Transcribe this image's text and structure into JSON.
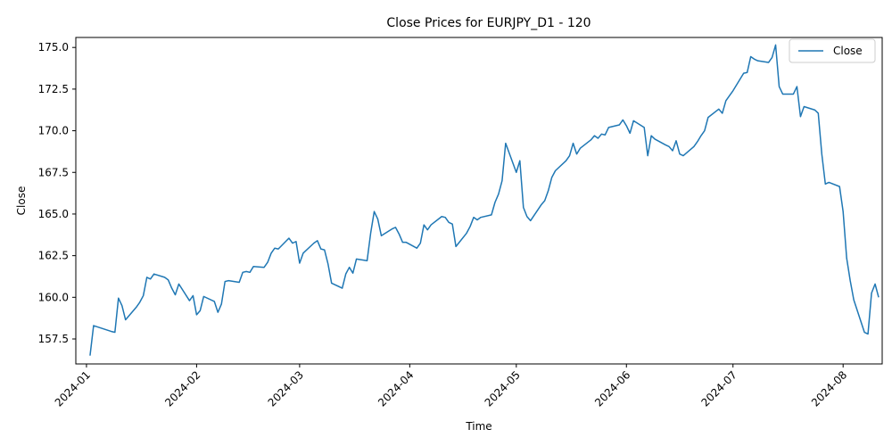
{
  "chart_data": {
    "type": "line",
    "title": "Close Prices for EURJPY_D1 - 120",
    "xlabel": "Time",
    "ylabel": "Close",
    "xlim": [
      "2023-12-29",
      "2024-08-12"
    ],
    "ylim": [
      156.0,
      175.6
    ],
    "x_ticks": [
      "2024-01",
      "2024-02",
      "2024-03",
      "2024-04",
      "2024-05",
      "2024-06",
      "2024-07",
      "2024-08"
    ],
    "y_ticks": [
      "157.5",
      "160.0",
      "162.5",
      "165.0",
      "167.5",
      "170.0",
      "172.5",
      "175.0"
    ],
    "grid": false,
    "legend": {
      "position": "top-right",
      "entries": [
        "Close"
      ]
    },
    "series": [
      {
        "name": "Close",
        "color": "#1f77b4",
        "points": [
          [
            "2024-01-02",
            156.5
          ],
          [
            "2024-01-03",
            158.3
          ],
          [
            "2024-01-08",
            157.95
          ],
          [
            "2024-01-09",
            157.9
          ],
          [
            "2024-01-10",
            159.95
          ],
          [
            "2024-01-11",
            159.5
          ],
          [
            "2024-01-12",
            158.65
          ],
          [
            "2024-01-15",
            159.4
          ],
          [
            "2024-01-16",
            159.7
          ],
          [
            "2024-01-17",
            160.1
          ],
          [
            "2024-01-18",
            161.2
          ],
          [
            "2024-01-19",
            161.1
          ],
          [
            "2024-01-20",
            161.4
          ],
          [
            "2024-01-23",
            161.2
          ],
          [
            "2024-01-24",
            161.05
          ],
          [
            "2024-01-25",
            160.55
          ],
          [
            "2024-01-26",
            160.15
          ],
          [
            "2024-01-27",
            160.8
          ],
          [
            "2024-01-30",
            159.8
          ],
          [
            "2024-01-31",
            160.1
          ],
          [
            "2024-02-01",
            158.95
          ],
          [
            "2024-02-02",
            159.2
          ],
          [
            "2024-02-03",
            160.05
          ],
          [
            "2024-02-06",
            159.75
          ],
          [
            "2024-02-07",
            159.1
          ],
          [
            "2024-02-08",
            159.6
          ],
          [
            "2024-02-09",
            160.95
          ],
          [
            "2024-02-10",
            161.0
          ],
          [
            "2024-02-13",
            160.9
          ],
          [
            "2024-02-14",
            161.5
          ],
          [
            "2024-02-15",
            161.55
          ],
          [
            "2024-02-16",
            161.5
          ],
          [
            "2024-02-17",
            161.85
          ],
          [
            "2024-02-20",
            161.8
          ],
          [
            "2024-02-21",
            162.1
          ],
          [
            "2024-02-22",
            162.65
          ],
          [
            "2024-02-23",
            162.95
          ],
          [
            "2024-02-24",
            162.9
          ],
          [
            "2024-02-27",
            163.55
          ],
          [
            "2024-02-28",
            163.25
          ],
          [
            "2024-02-29",
            163.35
          ],
          [
            "2024-03-01",
            162.05
          ],
          [
            "2024-03-02",
            162.65
          ],
          [
            "2024-03-05",
            163.25
          ],
          [
            "2024-03-06",
            163.4
          ],
          [
            "2024-03-07",
            162.9
          ],
          [
            "2024-03-08",
            162.85
          ],
          [
            "2024-03-09",
            162.0
          ],
          [
            "2024-03-10",
            160.85
          ],
          [
            "2024-03-13",
            160.55
          ],
          [
            "2024-03-14",
            161.4
          ],
          [
            "2024-03-15",
            161.8
          ],
          [
            "2024-03-16",
            161.45
          ],
          [
            "2024-03-17",
            162.3
          ],
          [
            "2024-03-20",
            162.2
          ],
          [
            "2024-03-21",
            163.85
          ],
          [
            "2024-03-22",
            165.15
          ],
          [
            "2024-03-23",
            164.7
          ],
          [
            "2024-03-24",
            163.7
          ],
          [
            "2024-03-27",
            164.1
          ],
          [
            "2024-03-28",
            164.2
          ],
          [
            "2024-03-29",
            163.8
          ],
          [
            "2024-03-30",
            163.3
          ],
          [
            "2024-03-31",
            163.3
          ],
          [
            "2024-04-03",
            162.95
          ],
          [
            "2024-04-04",
            163.25
          ],
          [
            "2024-04-05",
            164.35
          ],
          [
            "2024-04-06",
            164.05
          ],
          [
            "2024-04-07",
            164.35
          ],
          [
            "2024-04-10",
            164.85
          ],
          [
            "2024-04-11",
            164.8
          ],
          [
            "2024-04-12",
            164.5
          ],
          [
            "2024-04-13",
            164.4
          ],
          [
            "2024-04-14",
            163.05
          ],
          [
            "2024-04-17",
            163.85
          ],
          [
            "2024-04-18",
            164.25
          ],
          [
            "2024-04-19",
            164.8
          ],
          [
            "2024-04-20",
            164.65
          ],
          [
            "2024-04-21",
            164.8
          ],
          [
            "2024-04-24",
            164.95
          ],
          [
            "2024-04-25",
            165.7
          ],
          [
            "2024-04-26",
            166.2
          ],
          [
            "2024-04-27",
            167.0
          ],
          [
            "2024-04-28",
            169.25
          ],
          [
            "2024-05-01",
            167.5
          ],
          [
            "2024-05-02",
            168.2
          ],
          [
            "2024-05-03",
            165.4
          ],
          [
            "2024-05-04",
            164.85
          ],
          [
            "2024-05-05",
            164.6
          ],
          [
            "2024-05-08",
            165.55
          ],
          [
            "2024-05-09",
            165.8
          ],
          [
            "2024-05-10",
            166.4
          ],
          [
            "2024-05-11",
            167.2
          ],
          [
            "2024-05-12",
            167.6
          ],
          [
            "2024-05-15",
            168.2
          ],
          [
            "2024-05-16",
            168.5
          ],
          [
            "2024-05-17",
            169.25
          ],
          [
            "2024-05-18",
            168.6
          ],
          [
            "2024-05-19",
            168.95
          ],
          [
            "2024-05-22",
            169.45
          ],
          [
            "2024-05-23",
            169.7
          ],
          [
            "2024-05-24",
            169.55
          ],
          [
            "2024-05-25",
            169.8
          ],
          [
            "2024-05-26",
            169.75
          ],
          [
            "2024-05-27",
            170.2
          ],
          [
            "2024-05-30",
            170.35
          ],
          [
            "2024-05-31",
            170.65
          ],
          [
            "2024-06-01",
            170.3
          ],
          [
            "2024-06-02",
            169.85
          ],
          [
            "2024-06-03",
            170.6
          ],
          [
            "2024-06-06",
            170.2
          ],
          [
            "2024-06-07",
            168.5
          ],
          [
            "2024-06-08",
            169.7
          ],
          [
            "2024-06-09",
            169.5
          ],
          [
            "2024-06-12",
            169.15
          ],
          [
            "2024-06-13",
            169.05
          ],
          [
            "2024-06-14",
            168.8
          ],
          [
            "2024-06-15",
            169.4
          ],
          [
            "2024-06-16",
            168.6
          ],
          [
            "2024-06-17",
            168.5
          ],
          [
            "2024-06-20",
            169.05
          ],
          [
            "2024-06-21",
            169.35
          ],
          [
            "2024-06-22",
            169.7
          ],
          [
            "2024-06-23",
            170.0
          ],
          [
            "2024-06-24",
            170.8
          ],
          [
            "2024-06-27",
            171.3
          ],
          [
            "2024-06-28",
            171.05
          ],
          [
            "2024-06-29",
            171.8
          ],
          [
            "2024-06-30",
            172.1
          ],
          [
            "2024-07-01",
            172.4
          ],
          [
            "2024-07-04",
            173.45
          ],
          [
            "2024-07-05",
            173.5
          ],
          [
            "2024-07-06",
            174.45
          ],
          [
            "2024-07-07",
            174.3
          ],
          [
            "2024-07-08",
            174.2
          ],
          [
            "2024-07-11",
            174.1
          ],
          [
            "2024-07-12",
            174.4
          ],
          [
            "2024-07-13",
            175.15
          ],
          [
            "2024-07-14",
            172.65
          ],
          [
            "2024-07-15",
            172.2
          ],
          [
            "2024-07-18",
            172.2
          ],
          [
            "2024-07-19",
            172.65
          ],
          [
            "2024-07-20",
            170.85
          ],
          [
            "2024-07-21",
            171.45
          ],
          [
            "2024-07-24",
            171.25
          ],
          [
            "2024-07-25",
            171.05
          ],
          [
            "2024-07-26",
            168.6
          ],
          [
            "2024-07-27",
            166.8
          ],
          [
            "2024-07-28",
            166.9
          ],
          [
            "2024-07-31",
            166.65
          ],
          [
            "2024-08-01",
            165.15
          ],
          [
            "2024-08-02",
            162.35
          ],
          [
            "2024-08-03",
            161.0
          ],
          [
            "2024-08-04",
            159.85
          ],
          [
            "2024-08-07",
            157.9
          ],
          [
            "2024-08-08",
            157.8
          ],
          [
            "2024-08-09",
            160.25
          ],
          [
            "2024-08-10",
            160.8
          ],
          [
            "2024-08-11",
            160.0
          ]
        ]
      }
    ]
  }
}
